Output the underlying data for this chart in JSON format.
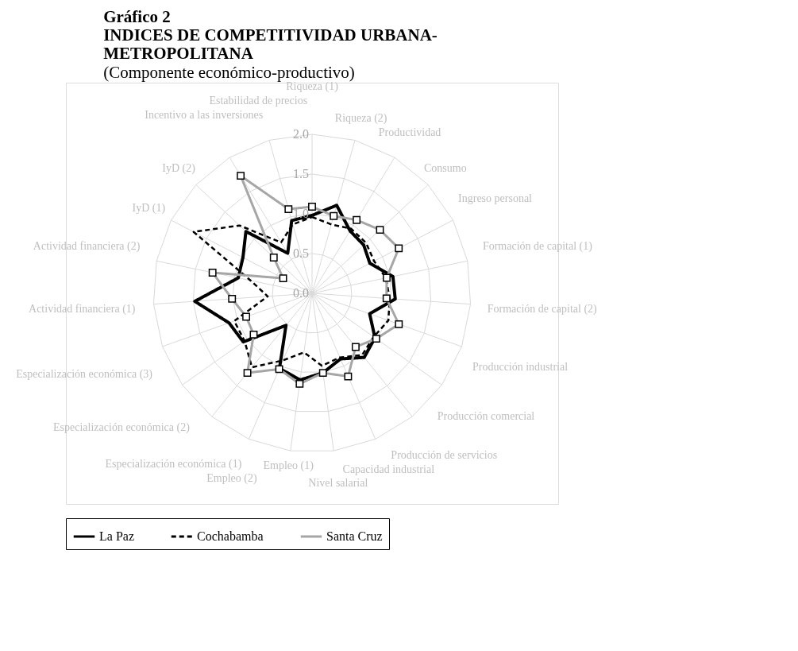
{
  "chart_data": {
    "type": "radar",
    "title": "Gráfico 2\nINDICES DE COMPETITIVIDAD URBANA-\nMETROPOLITANA",
    "subtitle": "(Componente económico-productivo)",
    "categories": [
      "Riqueza (1)",
      "Riqueza (2)",
      "Productividad",
      "Consumo",
      "Ingreso personal",
      "Formación de capital (1)",
      "Formación de capital (2)",
      "Producción industrial",
      "Producción comercial",
      "Producción de servicios",
      "Capacidad industrial",
      "Nivel salarial",
      "Empleo (1)",
      "Empleo (2)",
      "Especialización económica (1)",
      "Especialización económica (2)",
      "Especialización económica (3)",
      "Actividad financiera (1)",
      "Actividad financiera (2)",
      "IyD (1)",
      "IyD (2)",
      "Incentivo a las inversiones",
      "Estabilidad de precios"
    ],
    "series": [
      {
        "name": "La Paz",
        "color": "#000000",
        "line_style": "solid",
        "marker": "none",
        "values": [
          0.98,
          1.15,
          0.92,
          0.89,
          0.82,
          1.04,
          1.05,
          0.77,
          0.97,
          1.04,
          0.9,
          1.01,
          1.1,
          1.03,
          0.52,
          1.06,
          1.11,
          1.48,
          0.95,
          0.98,
          1.14,
          0.59,
          0.95
        ]
      },
      {
        "name": "Cochabamba",
        "color": "#000000",
        "line_style": "dashed",
        "marker": "none",
        "values": [
          0.96,
          0.9,
          0.95,
          0.93,
          0.88,
          0.95,
          0.98,
          1.02,
          0.95,
          1.0,
          0.88,
          0.92,
          0.75,
          0.92,
          1.2,
          1.04,
          1.04,
          0.56,
          0.79,
          1.68,
          1.25,
          0.75,
          0.9
        ]
      },
      {
        "name": "Santa Cruz",
        "color": "#a6a6a6",
        "line_style": "solid",
        "marker": "square",
        "values": [
          1.09,
          1.01,
          1.08,
          1.17,
          1.23,
          0.96,
          0.94,
          1.16,
          0.99,
          0.87,
          1.14,
          1.01,
          1.15,
          1.04,
          1.29,
          0.9,
          0.88,
          1.01,
          1.28,
          0.41,
          0.66,
          1.73,
          1.1
        ]
      }
    ],
    "ylim": [
      0,
      2.0
    ],
    "yticks": [
      {
        "value": 0,
        "label": "0.0"
      },
      {
        "value": 0.5,
        "label": "0.5"
      },
      {
        "value": 1,
        "label": "1.0"
      },
      {
        "value": 1.5,
        "label": "1.5"
      },
      {
        "value": 2,
        "label": "2.0"
      }
    ],
    "grid": true,
    "legend": "bottom"
  }
}
